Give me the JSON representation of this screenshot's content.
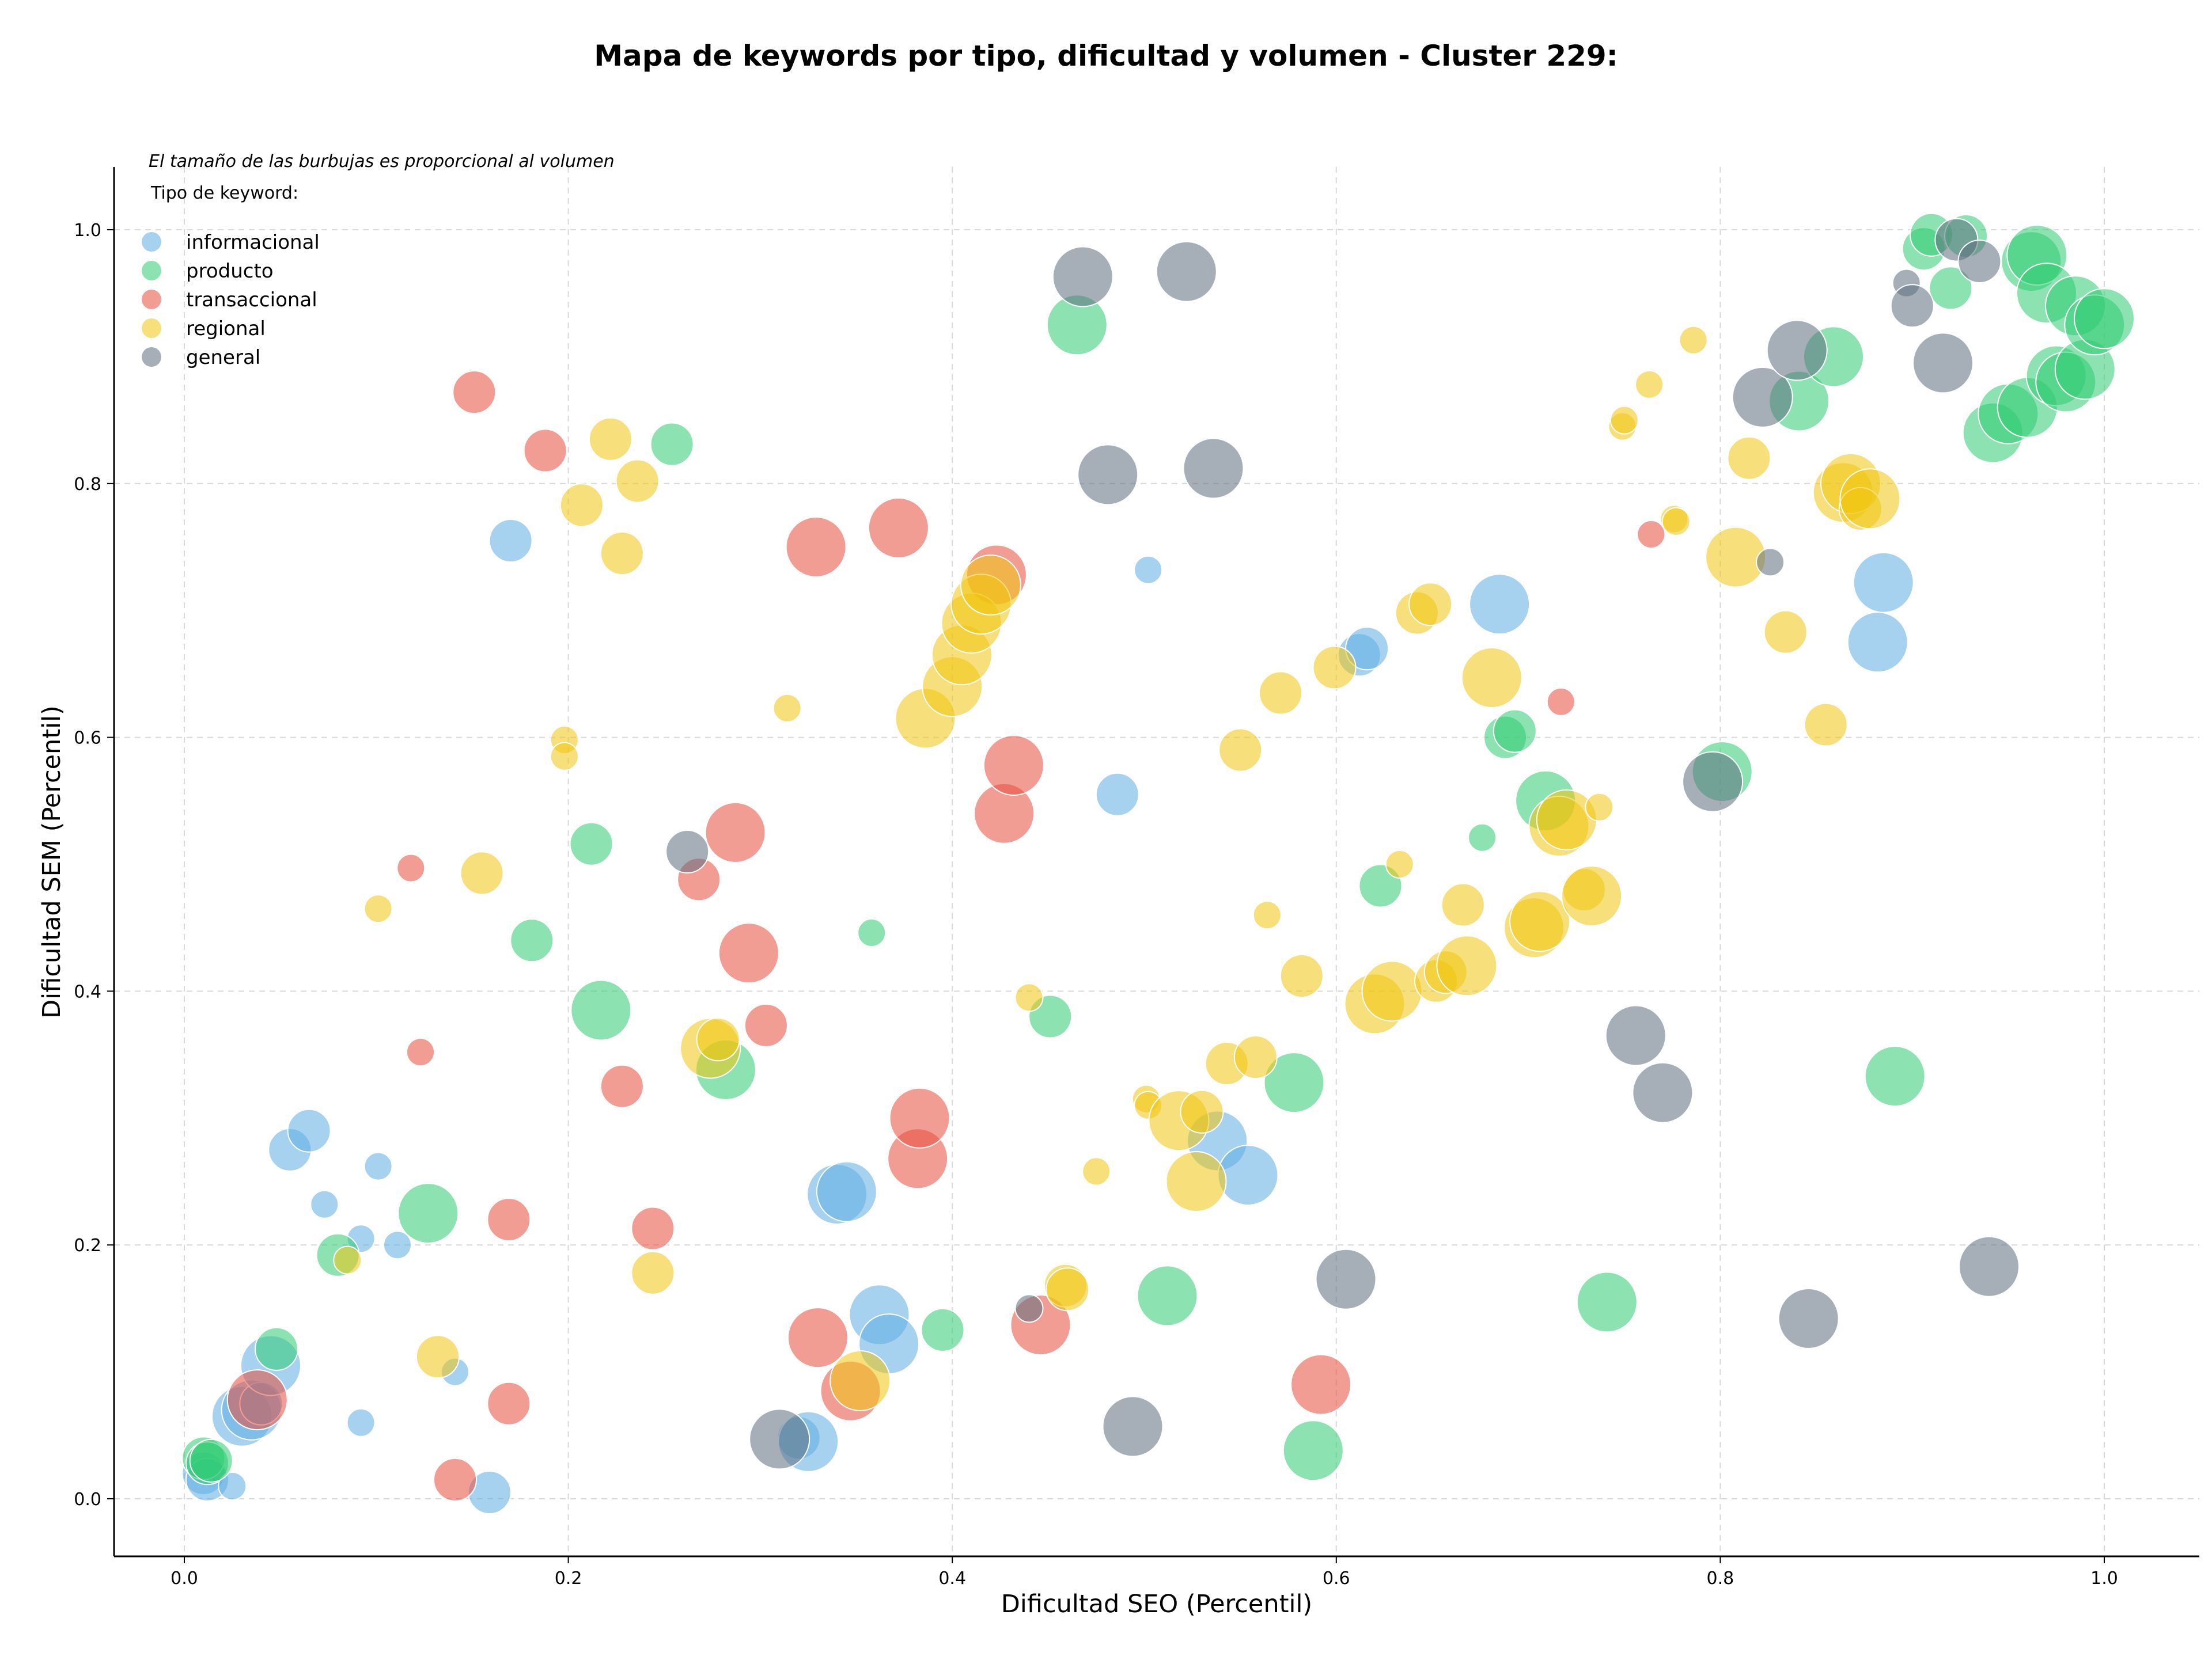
{
  "chart_data": {
    "type": "scatter",
    "title": "Mapa de keywords por tipo, dificultad y volumen - Cluster 229:",
    "xlabel": "Dificultad SEO (Percentil)",
    "ylabel": "Dificultad SEM (Percentil)",
    "xlim": [
      -0.04,
      1.05
    ],
    "ylim": [
      -0.04,
      1.05
    ],
    "xticks": [
      "0.0",
      "0.2",
      "0.4",
      "0.6",
      "0.8",
      "1.0"
    ],
    "yticks": [
      "0.0",
      "0.2",
      "0.4",
      "0.6",
      "0.8",
      "1.0"
    ],
    "grid": true,
    "note": "El tamaño de las burbujas es proporcional al volumen",
    "legend_title": "Tipo de keyword:",
    "legend_position": "top-left",
    "series": [
      {
        "name": "informacional",
        "color": "#5dade2",
        "points": [
          [
            0.01,
            0.02,
            2
          ],
          [
            0.012,
            0.015,
            2
          ],
          [
            0.025,
            0.01,
            1
          ],
          [
            0.03,
            0.065,
            3
          ],
          [
            0.035,
            0.07,
            3
          ],
          [
            0.04,
            0.075,
            2
          ],
          [
            0.045,
            0.105,
            3
          ],
          [
            0.055,
            0.275,
            2
          ],
          [
            0.065,
            0.29,
            2
          ],
          [
            0.073,
            0.232,
            1
          ],
          [
            0.092,
            0.205,
            1
          ],
          [
            0.092,
            0.06,
            1
          ],
          [
            0.101,
            0.262,
            1
          ],
          [
            0.111,
            0.2,
            1
          ],
          [
            0.141,
            0.1,
            1
          ],
          [
            0.159,
            0.005,
            2
          ],
          [
            0.17,
            0.755,
            2
          ],
          [
            0.32,
            0.048,
            2
          ],
          [
            0.325,
            0.045,
            3
          ],
          [
            0.34,
            0.24,
            3
          ],
          [
            0.345,
            0.242,
            3
          ],
          [
            0.362,
            0.145,
            3
          ],
          [
            0.367,
            0.122,
            3
          ],
          [
            0.486,
            0.555,
            2
          ],
          [
            0.502,
            0.732,
            1
          ],
          [
            0.538,
            0.282,
            3
          ],
          [
            0.554,
            0.255,
            3
          ],
          [
            0.612,
            0.665,
            2
          ],
          [
            0.616,
            0.67,
            2
          ],
          [
            0.685,
            0.705,
            3
          ],
          [
            0.882,
            0.675,
            3
          ],
          [
            0.885,
            0.722,
            3
          ]
        ]
      },
      {
        "name": "producto",
        "color": "#2ecc71",
        "points": [
          [
            0.01,
            0.032,
            2
          ],
          [
            0.012,
            0.028,
            2
          ],
          [
            0.014,
            0.03,
            2
          ],
          [
            0.048,
            0.118,
            2
          ],
          [
            0.08,
            0.192,
            2
          ],
          [
            0.127,
            0.225,
            3
          ],
          [
            0.181,
            0.44,
            2
          ],
          [
            0.212,
            0.516,
            2
          ],
          [
            0.217,
            0.385,
            3
          ],
          [
            0.254,
            0.831,
            2
          ],
          [
            0.282,
            0.338,
            3
          ],
          [
            0.358,
            0.446,
            1
          ],
          [
            0.395,
            0.133,
            2
          ],
          [
            0.451,
            0.38,
            2
          ],
          [
            0.465,
            0.925,
            3
          ],
          [
            0.512,
            0.16,
            3
          ],
          [
            0.578,
            0.328,
            3
          ],
          [
            0.588,
            0.038,
            3
          ],
          [
            0.623,
            0.483,
            2
          ],
          [
            0.676,
            0.521,
            1
          ],
          [
            0.688,
            0.6,
            2
          ],
          [
            0.693,
            0.605,
            2
          ],
          [
            0.709,
            0.55,
            3
          ],
          [
            0.741,
            0.155,
            3
          ],
          [
            0.801,
            0.573,
            3
          ],
          [
            0.841,
            0.865,
            3
          ],
          [
            0.859,
            0.9,
            3
          ],
          [
            0.891,
            0.333,
            3
          ],
          [
            0.906,
            0.985,
            2
          ],
          [
            0.91,
            0.996,
            2
          ],
          [
            0.92,
            0.954,
            2
          ],
          [
            0.928,
            0.995,
            2
          ],
          [
            0.942,
            0.84,
            3
          ],
          [
            0.95,
            0.855,
            3
          ],
          [
            0.96,
            0.86,
            3
          ],
          [
            0.962,
            0.975,
            3
          ],
          [
            0.965,
            0.98,
            3
          ],
          [
            0.97,
            0.95,
            3
          ],
          [
            0.975,
            0.885,
            3
          ],
          [
            0.98,
            0.88,
            3
          ],
          [
            0.985,
            0.94,
            3
          ],
          [
            0.99,
            0.89,
            3
          ],
          [
            0.995,
            0.925,
            3
          ],
          [
            1.0,
            0.93,
            3
          ]
        ]
      },
      {
        "name": "transaccional",
        "color": "#e74c3c",
        "points": [
          [
            0.038,
            0.078,
            3
          ],
          [
            0.118,
            0.497,
            1
          ],
          [
            0.123,
            0.352,
            1
          ],
          [
            0.141,
            0.015,
            2
          ],
          [
            0.151,
            0.872,
            2
          ],
          [
            0.169,
            0.075,
            2
          ],
          [
            0.169,
            0.22,
            2
          ],
          [
            0.188,
            0.826,
            2
          ],
          [
            0.228,
            0.325,
            2
          ],
          [
            0.244,
            0.213,
            2
          ],
          [
            0.268,
            0.488,
            2
          ],
          [
            0.287,
            0.525,
            3
          ],
          [
            0.294,
            0.43,
            3
          ],
          [
            0.303,
            0.373,
            2
          ],
          [
            0.329,
            0.75,
            3
          ],
          [
            0.33,
            0.127,
            3
          ],
          [
            0.347,
            0.085,
            3
          ],
          [
            0.372,
            0.765,
            3
          ],
          [
            0.382,
            0.268,
            3
          ],
          [
            0.383,
            0.3,
            3
          ],
          [
            0.423,
            0.728,
            3
          ],
          [
            0.427,
            0.54,
            3
          ],
          [
            0.432,
            0.578,
            3
          ],
          [
            0.446,
            0.137,
            3
          ],
          [
            0.592,
            0.09,
            3
          ],
          [
            0.717,
            0.628,
            1
          ],
          [
            0.764,
            0.76,
            1
          ]
        ]
      },
      {
        "name": "regional",
        "color": "#f1c40f",
        "points": [
          [
            0.085,
            0.188,
            1
          ],
          [
            0.101,
            0.465,
            1
          ],
          [
            0.132,
            0.112,
            2
          ],
          [
            0.155,
            0.493,
            2
          ],
          [
            0.198,
            0.598,
            1
          ],
          [
            0.198,
            0.585,
            1
          ],
          [
            0.207,
            0.783,
            2
          ],
          [
            0.222,
            0.835,
            2
          ],
          [
            0.228,
            0.745,
            2
          ],
          [
            0.236,
            0.802,
            2
          ],
          [
            0.244,
            0.178,
            2
          ],
          [
            0.274,
            0.355,
            3
          ],
          [
            0.278,
            0.362,
            2
          ],
          [
            0.314,
            0.623,
            1
          ],
          [
            0.352,
            0.093,
            3
          ],
          [
            0.386,
            0.615,
            3
          ],
          [
            0.4,
            0.64,
            3
          ],
          [
            0.405,
            0.665,
            3
          ],
          [
            0.41,
            0.69,
            3
          ],
          [
            0.415,
            0.705,
            3
          ],
          [
            0.42,
            0.72,
            3
          ],
          [
            0.44,
            0.395,
            1
          ],
          [
            0.459,
            0.168,
            2
          ],
          [
            0.46,
            0.165,
            2
          ],
          [
            0.475,
            0.258,
            1
          ],
          [
            0.501,
            0.315,
            1
          ],
          [
            0.502,
            0.31,
            1
          ],
          [
            0.518,
            0.298,
            3
          ],
          [
            0.527,
            0.25,
            3
          ],
          [
            0.53,
            0.305,
            2
          ],
          [
            0.543,
            0.343,
            2
          ],
          [
            0.55,
            0.59,
            2
          ],
          [
            0.558,
            0.348,
            2
          ],
          [
            0.564,
            0.46,
            1
          ],
          [
            0.571,
            0.635,
            2
          ],
          [
            0.582,
            0.412,
            2
          ],
          [
            0.599,
            0.655,
            2
          ],
          [
            0.62,
            0.39,
            3
          ],
          [
            0.629,
            0.4,
            3
          ],
          [
            0.633,
            0.5,
            1
          ],
          [
            0.642,
            0.698,
            2
          ],
          [
            0.649,
            0.705,
            2
          ],
          [
            0.652,
            0.408,
            2
          ],
          [
            0.657,
            0.415,
            2
          ],
          [
            0.666,
            0.468,
            2
          ],
          [
            0.668,
            0.42,
            3
          ],
          [
            0.681,
            0.647,
            3
          ],
          [
            0.703,
            0.45,
            3
          ],
          [
            0.706,
            0.455,
            3
          ],
          [
            0.716,
            0.53,
            3
          ],
          [
            0.72,
            0.535,
            3
          ],
          [
            0.729,
            0.48,
            2
          ],
          [
            0.733,
            0.475,
            3
          ],
          [
            0.737,
            0.545,
            1
          ],
          [
            0.749,
            0.845,
            1
          ],
          [
            0.75,
            0.85,
            1
          ],
          [
            0.763,
            0.878,
            1
          ],
          [
            0.776,
            0.772,
            1
          ],
          [
            0.777,
            0.77,
            1
          ],
          [
            0.786,
            0.913,
            1
          ],
          [
            0.808,
            0.742,
            3
          ],
          [
            0.815,
            0.82,
            2
          ],
          [
            0.834,
            0.683,
            2
          ],
          [
            0.855,
            0.61,
            2
          ],
          [
            0.864,
            0.793,
            3
          ],
          [
            0.868,
            0.8,
            3
          ],
          [
            0.873,
            0.78,
            2
          ],
          [
            0.878,
            0.788,
            3
          ]
        ]
      },
      {
        "name": "general",
        "color": "#5d6d7e",
        "points": [
          [
            0.262,
            0.51,
            2
          ],
          [
            0.31,
            0.047,
            3
          ],
          [
            0.44,
            0.15,
            1
          ],
          [
            0.468,
            0.963,
            3
          ],
          [
            0.481,
            0.807,
            3
          ],
          [
            0.494,
            0.057,
            3
          ],
          [
            0.522,
            0.967,
            3
          ],
          [
            0.536,
            0.812,
            3
          ],
          [
            0.605,
            0.173,
            3
          ],
          [
            0.756,
            0.365,
            3
          ],
          [
            0.77,
            0.32,
            3
          ],
          [
            0.796,
            0.565,
            3
          ],
          [
            0.822,
            0.868,
            3
          ],
          [
            0.826,
            0.738,
            1
          ],
          [
            0.84,
            0.905,
            3
          ],
          [
            0.846,
            0.142,
            3
          ],
          [
            0.897,
            0.958,
            1
          ],
          [
            0.9,
            0.94,
            2
          ],
          [
            0.916,
            0.895,
            3
          ],
          [
            0.923,
            0.992,
            2
          ],
          [
            0.935,
            0.975,
            2
          ],
          [
            0.94,
            0.183,
            3
          ]
        ]
      }
    ]
  }
}
